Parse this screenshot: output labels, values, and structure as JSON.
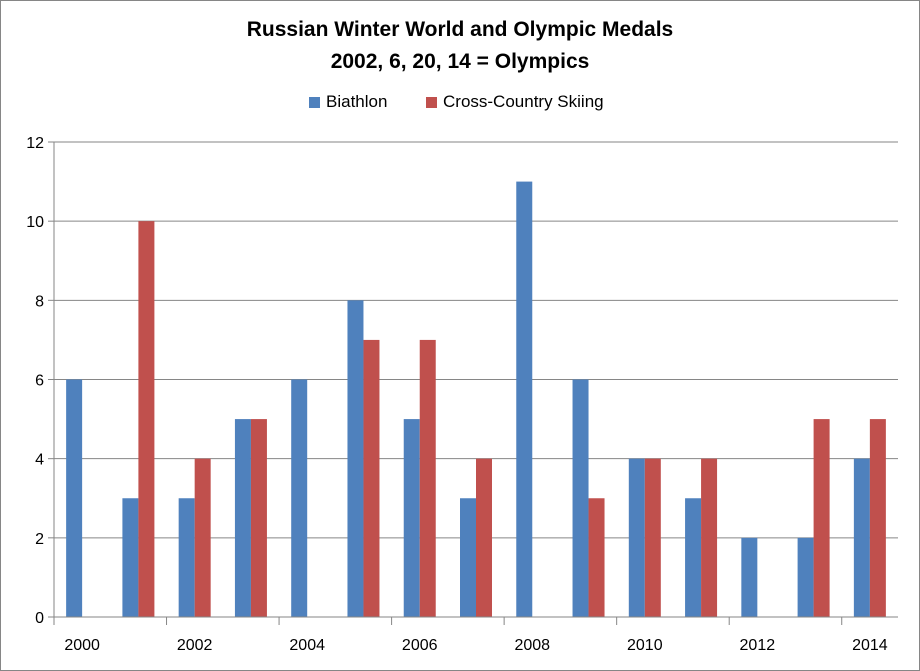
{
  "chart_data": {
    "type": "bar",
    "title_lines": [
      "Russian Winter World and Olympic Medals",
      "2002, 6, 20, 14 = Olympics"
    ],
    "categories": [
      "2000",
      "2001",
      "2002",
      "2003",
      "2004",
      "2005",
      "2006",
      "2007",
      "2008",
      "2009",
      "2010",
      "2011",
      "2012",
      "2013",
      "2014"
    ],
    "x_tick_labels": [
      "2000",
      "",
      "2002",
      "",
      "2004",
      "",
      "2006",
      "",
      "2008",
      "",
      "2010",
      "",
      "2012",
      "",
      "2014"
    ],
    "series": [
      {
        "name": "Biathlon",
        "color": "#4F81BD",
        "values": [
          6,
          3,
          3,
          5,
          6,
          8,
          5,
          3,
          11,
          6,
          4,
          3,
          2,
          2,
          4
        ]
      },
      {
        "name": "Cross-Country Skiing",
        "color": "#C0504D",
        "values": [
          0,
          10,
          4,
          5,
          0,
          7,
          7,
          4,
          0,
          3,
          4,
          4,
          0,
          5,
          5
        ]
      }
    ],
    "ylim": [
      0,
      12
    ],
    "yticks": [
      0,
      2,
      4,
      6,
      8,
      10,
      12
    ],
    "xlabel": "",
    "ylabel": "",
    "grid": "horizontal",
    "legend_position": "top"
  }
}
